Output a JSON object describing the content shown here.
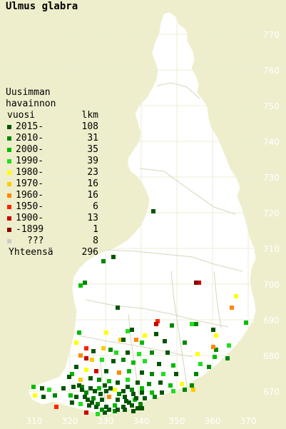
{
  "title": "Ulmus glabra",
  "legend": {
    "heading_lines": [
      "Uusimman",
      "havainnon",
      "vuosi"
    ],
    "count_header": "lkm",
    "entries": [
      {
        "label": "2015-",
        "count": "108",
        "color": "#005500"
      },
      {
        "label": "2010-",
        "count": "31",
        "color": "#008800"
      },
      {
        "label": "2000-",
        "count": "35",
        "color": "#00bb00"
      },
      {
        "label": "1990-",
        "count": "39",
        "color": "#22dd22"
      },
      {
        "label": "1980-",
        "count": "23",
        "color": "#ffff00"
      },
      {
        "label": "1970-",
        "count": "16",
        "color": "#ffcc00"
      },
      {
        "label": "1960-",
        "count": "16",
        "color": "#ff8800"
      },
      {
        "label": "1950-",
        "count": "6",
        "color": "#ff2200"
      },
      {
        "label": "1900-",
        "count": "13",
        "color": "#cc0000"
      },
      {
        "label": "-1899",
        "count": "1",
        "color": "#880000"
      },
      {
        "label": "???",
        "count": "8",
        "color": "#cccccc"
      }
    ],
    "total_label": "Yhteensä",
    "total_count": "296"
  },
  "axes": {
    "y_labels": [
      "770",
      "760",
      "750",
      "740",
      "730",
      "720",
      "710",
      "700",
      "690",
      "680",
      "670"
    ],
    "x_labels": [
      "310",
      "320",
      "330",
      "340",
      "350",
      "360",
      "370"
    ]
  },
  "colors": {
    "background": "#eeeecc",
    "land": "#ffffff",
    "grid": "#e8e8d0",
    "borders": "#d4d4b8"
  }
}
